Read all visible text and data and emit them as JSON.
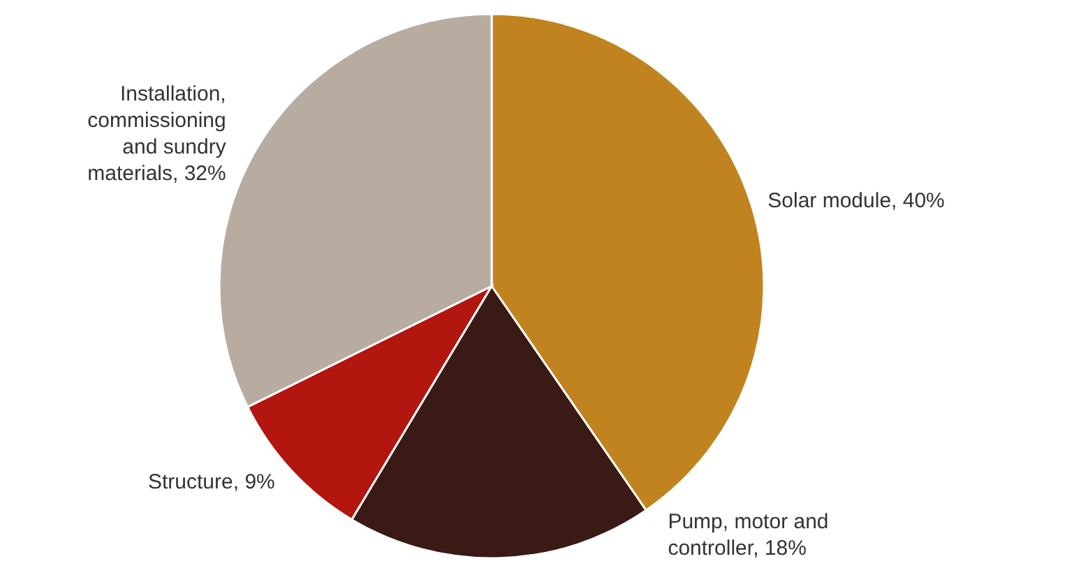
{
  "chart_data": {
    "type": "pie",
    "categories": [
      "Solar module, 40%",
      "Pump, motor and\ncontroller, 18%",
      "Structure, 9%",
      "Installation,\ncommissioning\nand sundry\nmaterials, 32%"
    ],
    "values": [
      40,
      18,
      9,
      32
    ],
    "colors": [
      "#c1831f",
      "#3a1a14",
      "#b3150f",
      "#b8aba0"
    ]
  }
}
